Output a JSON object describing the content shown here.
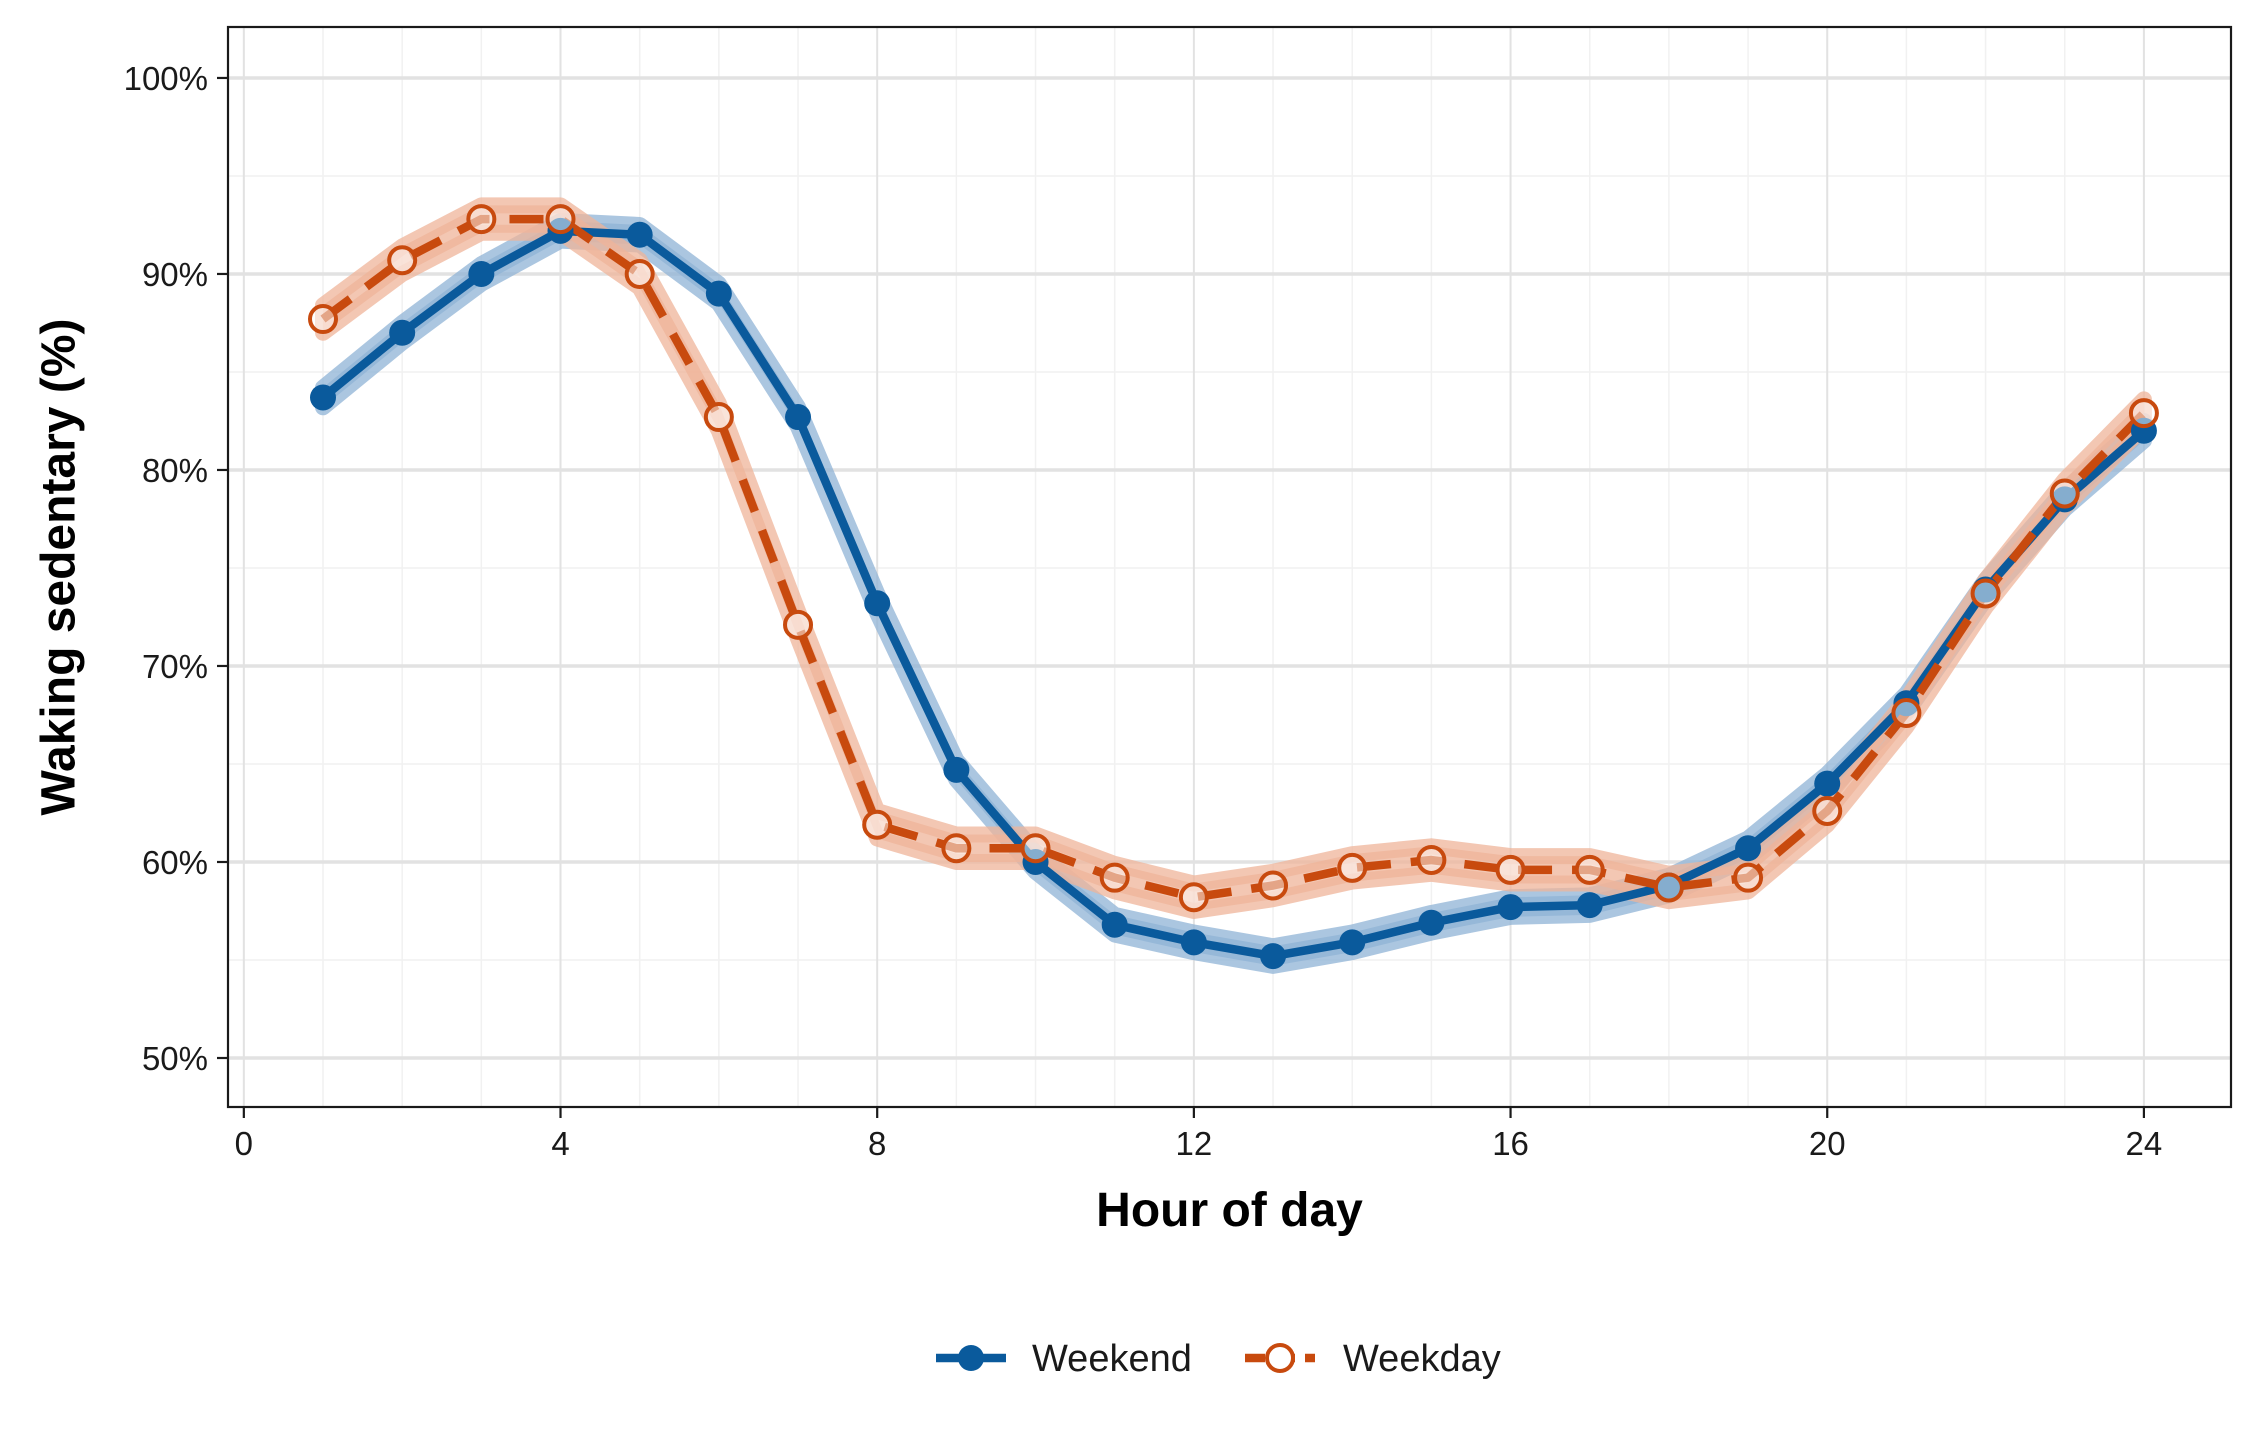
{
  "chart_data": {
    "type": "line",
    "xlabel": "Hour of day",
    "ylabel": "Waking sedentary (%)",
    "xlim": [
      -0.2,
      25.1
    ],
    "ylim": [
      47.5,
      102.6
    ],
    "x_ticks": [
      0,
      4,
      8,
      12,
      16,
      20,
      24
    ],
    "y_ticks": [
      50,
      60,
      70,
      80,
      90,
      100
    ],
    "y_tick_labels": [
      "50%",
      "60%",
      "70%",
      "80%",
      "90%",
      "100%"
    ],
    "grid": true,
    "legend_position": "bottom",
    "x": [
      1,
      2,
      3,
      4,
      5,
      6,
      7,
      8,
      9,
      10,
      11,
      12,
      13,
      14,
      15,
      16,
      17,
      18,
      19,
      20,
      21,
      22,
      23,
      24
    ],
    "series": [
      {
        "name": "Weekend",
        "color": "#0a5a9c",
        "ribbon_color": "#8fb3d6",
        "marker": "filled-circle",
        "line_style": "solid",
        "values": [
          83.7,
          87.0,
          90.0,
          92.2,
          92.0,
          89.0,
          82.7,
          73.2,
          64.7,
          60.0,
          56.8,
          55.9,
          55.2,
          55.9,
          56.9,
          57.7,
          57.8,
          58.8,
          60.7,
          64.0,
          68.1,
          73.9,
          78.5,
          82.0
        ],
        "ribbon": 0.5
      },
      {
        "name": "Weekday",
        "color": "#c84a0e",
        "ribbon_color": "#efb49a",
        "marker": "open-circle",
        "line_style": "dashed",
        "values": [
          87.7,
          90.7,
          92.8,
          92.8,
          90.0,
          82.7,
          72.1,
          61.9,
          60.7,
          60.7,
          59.2,
          58.2,
          58.8,
          59.7,
          60.1,
          59.6,
          59.6,
          58.7,
          59.2,
          62.6,
          67.6,
          73.7,
          78.8,
          82.9
        ],
        "ribbon": 0.7
      }
    ]
  }
}
